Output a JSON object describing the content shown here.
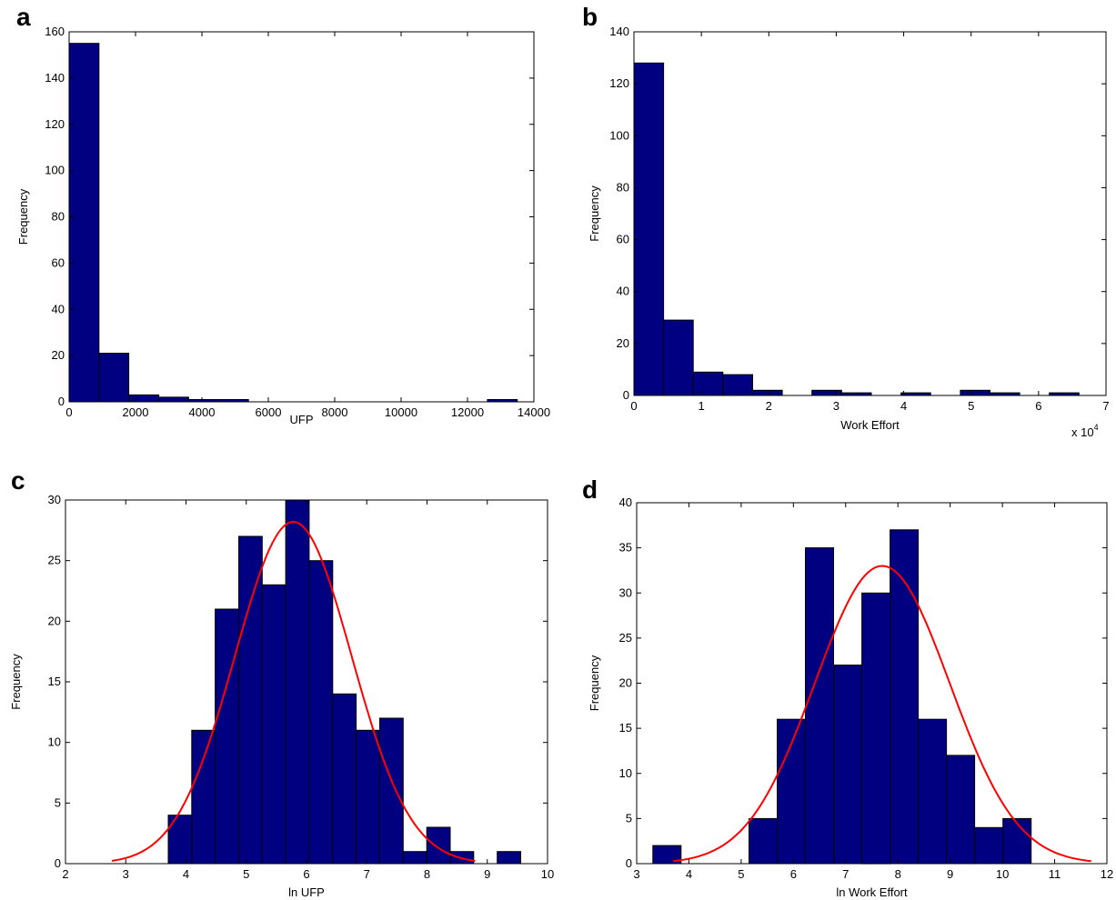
{
  "colors": {
    "bar_fill": "#000080",
    "bar_edge": "#000000",
    "fit_line": "#ff0000",
    "axis": "#000000"
  },
  "chart_data": [
    {
      "panel": "a",
      "type": "bar",
      "xlabel": "UFP",
      "ylabel": "Frequency",
      "xlim": [
        0,
        14000
      ],
      "ylim": [
        0,
        160
      ],
      "xticks": [
        0,
        2000,
        4000,
        6000,
        8000,
        10000,
        12000,
        14000
      ],
      "yticks": [
        0,
        20,
        40,
        60,
        80,
        100,
        120,
        140,
        160
      ],
      "bar_width": 900,
      "bins": [
        450,
        1350,
        2250,
        3150,
        4050,
        4950,
        13050
      ],
      "values": [
        155,
        21,
        3,
        2,
        1,
        1,
        1
      ]
    },
    {
      "panel": "b",
      "type": "bar",
      "xlabel": "Work Effort",
      "ylabel": "Frequency",
      "x_exponent": "x 10",
      "x_exponent_power": "4",
      "xlim": [
        0,
        7
      ],
      "ylim": [
        0,
        140
      ],
      "xticks": [
        0,
        1,
        2,
        3,
        4,
        5,
        6,
        7
      ],
      "yticks": [
        0,
        20,
        40,
        60,
        80,
        100,
        120,
        140
      ],
      "bar_width": 0.44,
      "bins": [
        0.22,
        0.66,
        1.1,
        1.54,
        1.98,
        2.86,
        3.3,
        4.18,
        5.06,
        5.5,
        6.38
      ],
      "values": [
        128,
        29,
        9,
        8,
        2,
        2,
        1,
        1,
        2,
        1,
        1
      ]
    },
    {
      "panel": "c",
      "type": "bar",
      "xlabel": "ln UFP",
      "ylabel": "Frequency",
      "xlim": [
        2,
        10
      ],
      "ylim": [
        0,
        30
      ],
      "xticks": [
        2,
        3,
        4,
        5,
        6,
        7,
        8,
        9,
        10
      ],
      "yticks": [
        0,
        5,
        10,
        15,
        20,
        25,
        30
      ],
      "bar_width": 0.39,
      "bins": [
        3.9,
        4.29,
        4.68,
        5.07,
        5.46,
        5.85,
        6.24,
        6.63,
        7.02,
        7.41,
        7.8,
        8.19,
        8.58,
        9.36
      ],
      "values": [
        4,
        11,
        21,
        27,
        23,
        30,
        25,
        14,
        11,
        12,
        1,
        3,
        1,
        1
      ],
      "fit_curve": {
        "type": "normal",
        "mean": 5.78,
        "sd": 0.97,
        "peak": 28.2,
        "x_range": [
          2.77,
          8.8
        ]
      }
    },
    {
      "panel": "d",
      "type": "bar",
      "xlabel": "ln Work Effort",
      "ylabel": "Frequency",
      "xlim": [
        3,
        12
      ],
      "ylim": [
        0,
        40
      ],
      "xticks": [
        3,
        4,
        5,
        6,
        7,
        8,
        9,
        10,
        11,
        12
      ],
      "yticks": [
        0,
        5,
        10,
        15,
        20,
        25,
        30,
        35,
        40
      ],
      "bar_width": 0.54,
      "bins": [
        3.58,
        5.42,
        5.96,
        6.5,
        7.04,
        7.58,
        8.12,
        8.66,
        9.2,
        9.74,
        10.28,
        10.82
      ],
      "values": [
        2,
        5,
        16,
        35,
        22,
        30,
        37,
        16,
        12,
        4,
        5,
        0
      ],
      "fit_curve": {
        "type": "normal",
        "mean": 7.7,
        "sd": 1.29,
        "peak": 33.0,
        "x_range": [
          3.7,
          11.7
        ]
      }
    }
  ]
}
